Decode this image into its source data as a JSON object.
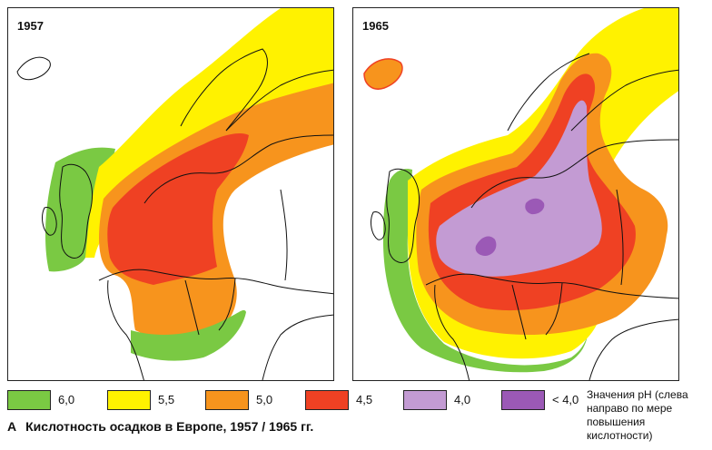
{
  "maps": [
    {
      "year": "1957"
    },
    {
      "year": "1965"
    }
  ],
  "legend": [
    {
      "label": "6,0",
      "color": "#7ac943"
    },
    {
      "label": "5,5",
      "color": "#fff200"
    },
    {
      "label": "5,0",
      "color": "#f7941d"
    },
    {
      "label": "4,5",
      "color": "#ef4123"
    },
    {
      "label": "4,0",
      "color": "#c39bd3"
    },
    {
      "label": "< 4,0",
      "color": "#9b59b6"
    }
  ],
  "legend_note": "Значения pH (слева направо по мере повышения кислотности)",
  "caption": {
    "letter": "А",
    "text": "Кислотность осадков в Европе, 1957 / 1965 гг."
  }
}
